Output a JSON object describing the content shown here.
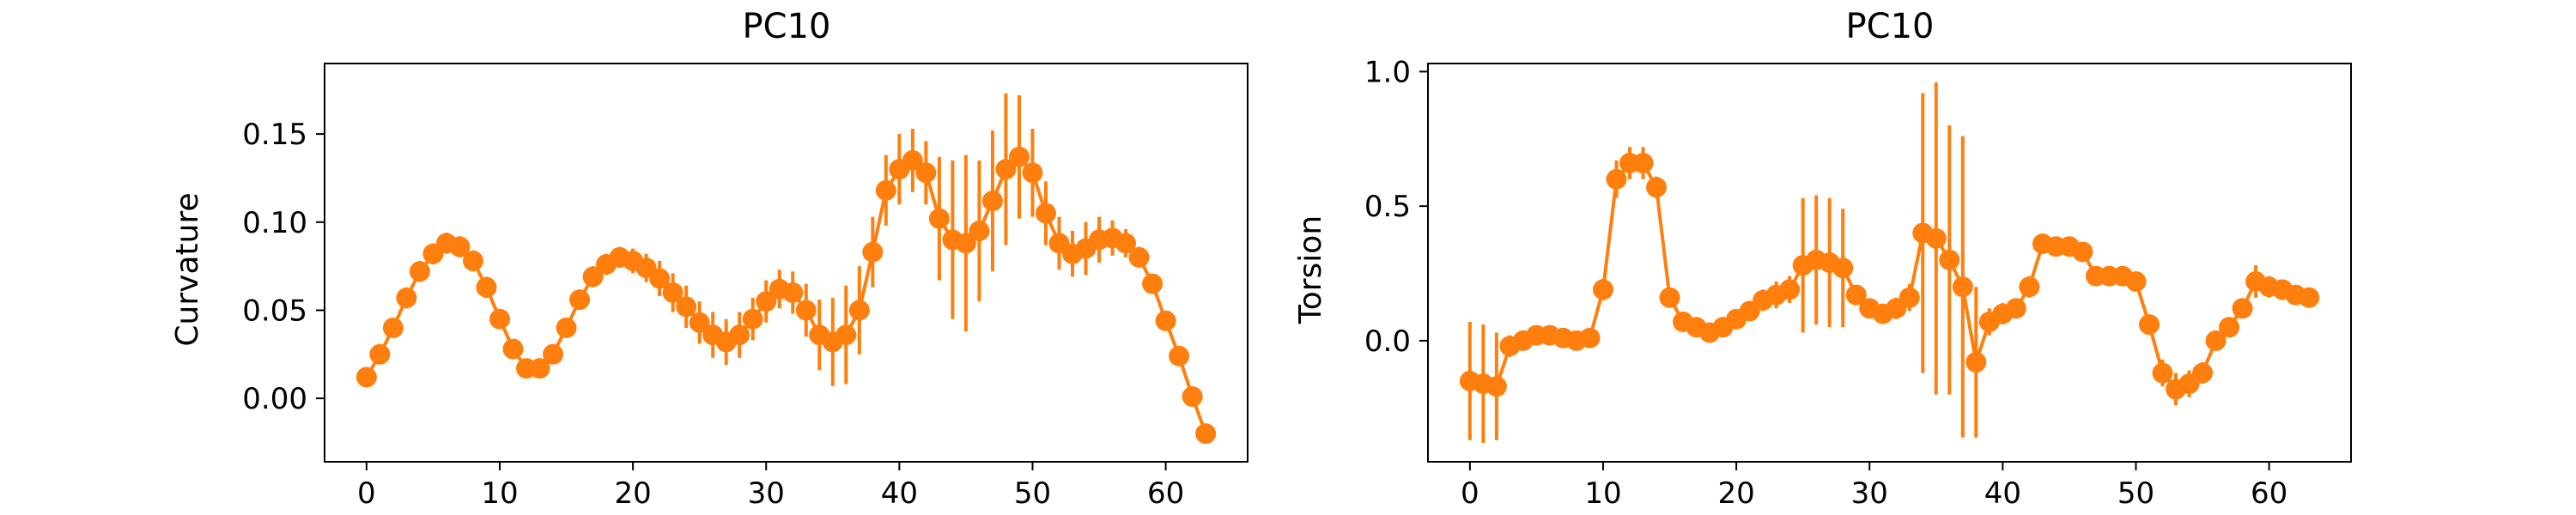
{
  "colors": {
    "series": "#ff7f0e",
    "axis": "#000000",
    "background": "#ffffff"
  },
  "chart_data": [
    {
      "type": "line",
      "title": "PC10",
      "xlabel": "",
      "ylabel": "Curvature",
      "xlim": [
        -3.15,
        66.15
      ],
      "ylim": [
        -0.036,
        0.19
      ],
      "xticks": [
        0,
        10,
        20,
        30,
        40,
        50,
        60
      ],
      "xtick_labels": [
        "0",
        "10",
        "20",
        "30",
        "40",
        "50",
        "60"
      ],
      "yticks": [
        0.0,
        0.05,
        0.1,
        0.15
      ],
      "ytick_labels": [
        "0.00",
        "0.05",
        "0.10",
        "0.15"
      ],
      "grid": false,
      "series": [
        {
          "x": [
            0,
            1,
            2,
            3,
            4,
            5,
            6,
            7,
            8,
            9,
            10,
            11,
            12,
            13,
            14,
            15,
            16,
            17,
            18,
            19,
            20,
            21,
            22,
            23,
            24,
            25,
            26,
            27,
            28,
            29,
            30,
            31,
            32,
            33,
            34,
            35,
            36,
            37,
            38,
            39,
            40,
            41,
            42,
            43,
            44,
            45,
            46,
            47,
            48,
            49,
            50,
            51,
            52,
            53,
            54,
            55,
            56,
            57,
            58,
            59,
            60,
            61,
            62,
            63
          ],
          "y": [
            0.012,
            0.025,
            0.04,
            0.057,
            0.072,
            0.082,
            0.088,
            0.086,
            0.078,
            0.063,
            0.045,
            0.028,
            0.017,
            0.017,
            0.025,
            0.04,
            0.056,
            0.069,
            0.076,
            0.08,
            0.078,
            0.074,
            0.068,
            0.06,
            0.052,
            0.043,
            0.036,
            0.032,
            0.036,
            0.045,
            0.055,
            0.062,
            0.06,
            0.05,
            0.036,
            0.032,
            0.036,
            0.05,
            0.083,
            0.118,
            0.13,
            0.135,
            0.128,
            0.102,
            0.09,
            0.088,
            0.095,
            0.112,
            0.13,
            0.137,
            0.128,
            0.105,
            0.088,
            0.082,
            0.085,
            0.09,
            0.091,
            0.088,
            0.08,
            0.065,
            0.044,
            0.024,
            0.001,
            -0.02
          ],
          "yerr": [
            0.003,
            0.004,
            0.005,
            0.006,
            0.006,
            0.006,
            0.006,
            0.006,
            0.006,
            0.006,
            0.005,
            0.005,
            0.004,
            0.004,
            0.004,
            0.005,
            0.005,
            0.006,
            0.006,
            0.006,
            0.007,
            0.008,
            0.01,
            0.011,
            0.012,
            0.012,
            0.013,
            0.013,
            0.013,
            0.012,
            0.012,
            0.011,
            0.012,
            0.015,
            0.02,
            0.025,
            0.028,
            0.025,
            0.02,
            0.02,
            0.02,
            0.018,
            0.018,
            0.035,
            0.045,
            0.05,
            0.04,
            0.04,
            0.043,
            0.035,
            0.025,
            0.018,
            0.015,
            0.013,
            0.015,
            0.013,
            0.01,
            0.008,
            0.006,
            0.005,
            0.004,
            0.004,
            0.004,
            0.003
          ]
        }
      ]
    },
    {
      "type": "line",
      "title": "PC10",
      "xlabel": "",
      "ylabel": "Torsion",
      "xlim": [
        -3.15,
        66.15
      ],
      "ylim": [
        -0.45,
        1.03
      ],
      "xticks": [
        0,
        10,
        20,
        30,
        40,
        50,
        60
      ],
      "xtick_labels": [
        "0",
        "10",
        "20",
        "30",
        "40",
        "50",
        "60"
      ],
      "yticks": [
        0.0,
        0.5,
        1.0
      ],
      "ytick_labels": [
        "0.0",
        "0.5",
        "1.0"
      ],
      "grid": false,
      "series": [
        {
          "x": [
            0,
            1,
            2,
            3,
            4,
            5,
            6,
            7,
            8,
            9,
            10,
            11,
            12,
            13,
            14,
            15,
            16,
            17,
            18,
            19,
            20,
            21,
            22,
            23,
            24,
            25,
            26,
            27,
            28,
            29,
            30,
            31,
            32,
            33,
            34,
            35,
            36,
            37,
            38,
            39,
            40,
            41,
            42,
            43,
            44,
            45,
            46,
            47,
            48,
            49,
            50,
            51,
            52,
            53,
            54,
            55,
            56,
            57,
            58,
            59,
            60,
            61,
            62,
            63
          ],
          "y": [
            -0.15,
            -0.16,
            -0.17,
            -0.02,
            0.0,
            0.02,
            0.02,
            0.01,
            0.0,
            0.01,
            0.19,
            0.6,
            0.66,
            0.66,
            0.57,
            0.16,
            0.07,
            0.05,
            0.03,
            0.05,
            0.08,
            0.11,
            0.15,
            0.17,
            0.19,
            0.28,
            0.3,
            0.29,
            0.27,
            0.17,
            0.12,
            0.1,
            0.12,
            0.16,
            0.4,
            0.38,
            0.3,
            0.2,
            -0.08,
            0.07,
            0.1,
            0.12,
            0.2,
            0.36,
            0.35,
            0.35,
            0.33,
            0.24,
            0.24,
            0.24,
            0.22,
            0.06,
            -0.12,
            -0.18,
            -0.16,
            -0.12,
            0.0,
            0.05,
            0.12,
            0.22,
            0.2,
            0.19,
            0.17,
            0.16
          ],
          "yerr": [
            0.22,
            0.22,
            0.2,
            0.04,
            0.03,
            0.03,
            0.03,
            0.03,
            0.03,
            0.03,
            0.04,
            0.07,
            0.06,
            0.06,
            0.04,
            0.03,
            0.03,
            0.03,
            0.03,
            0.03,
            0.03,
            0.03,
            0.04,
            0.05,
            0.05,
            0.25,
            0.24,
            0.24,
            0.22,
            0.03,
            0.03,
            0.03,
            0.04,
            0.05,
            0.52,
            0.58,
            0.5,
            0.56,
            0.28,
            0.05,
            0.04,
            0.03,
            0.04,
            0.03,
            0.03,
            0.03,
            0.03,
            0.03,
            0.03,
            0.03,
            0.03,
            0.03,
            0.05,
            0.06,
            0.05,
            0.04,
            0.03,
            0.03,
            0.03,
            0.06,
            0.04,
            0.03,
            0.03,
            0.03
          ]
        }
      ]
    }
  ]
}
